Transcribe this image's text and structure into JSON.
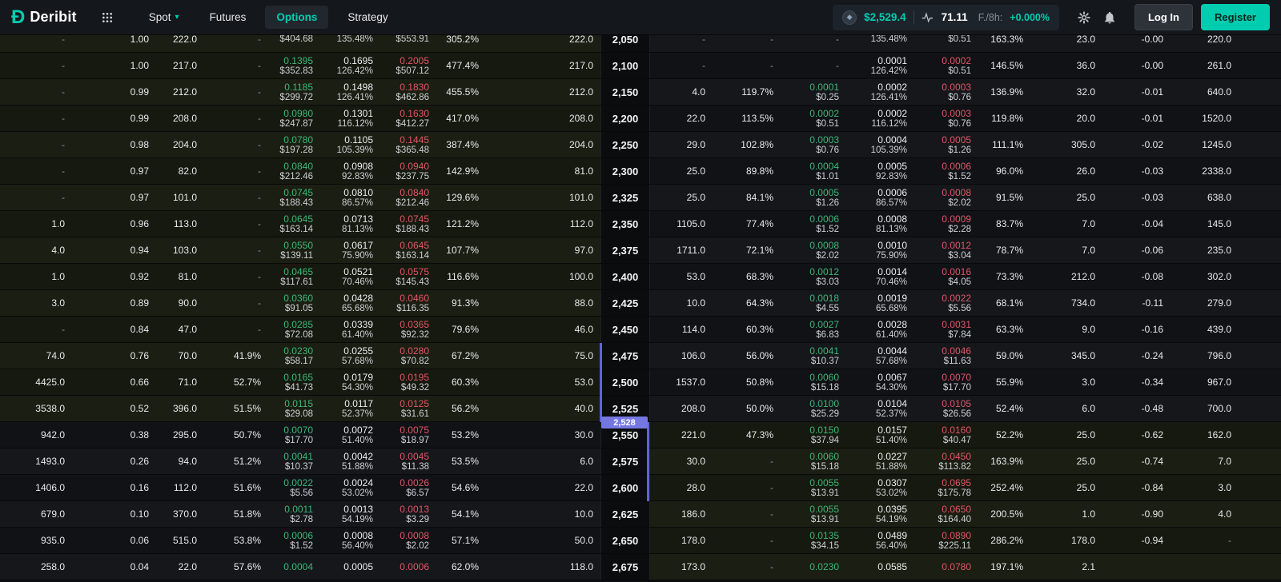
{
  "colors": {
    "accent": "#00cdb0",
    "green": "#3cb878",
    "red": "#e15767",
    "indigo": "#6063d8",
    "badge": "#7577e0"
  },
  "navbar": {
    "brand": "Deribit",
    "menu": [
      {
        "label": "Spot"
      },
      {
        "label": "Futures"
      },
      {
        "label": "Options"
      },
      {
        "label": "Strategy"
      }
    ],
    "ticker": {
      "price": "$2,529.4",
      "volatility": "71.11",
      "funding_label": "F./8h:",
      "funding_value": "+0.000%"
    },
    "login_label": "Log In",
    "register_label": "Register"
  },
  "chain": {
    "current_price_label": "2,528",
    "current_price_value": 2528,
    "rows": [
      {
        "strike": "2,050",
        "call": {
          "open": "-",
          "delta": "1.00",
          "size": "222.0",
          "iv_bid": "-",
          "bid": "",
          "bid_usd": "$404.68",
          "mark": "",
          "mark_iv": "135.48%",
          "ask": "",
          "ask_usd": "$553.91",
          "iv_ask": "305.2%",
          "ask_size": "222.0"
        },
        "put": {
          "size": "-",
          "iv_bid": "-",
          "bid": "-",
          "bid_usd": "",
          "mark": "",
          "mark_iv": "135.48%",
          "ask": "",
          "ask_usd": "$0.51",
          "iv_ask": "163.3%",
          "ask_size": "23.0",
          "delta": "-0.00",
          "open": "220.0"
        }
      },
      {
        "strike": "2,100",
        "call": {
          "open": "-",
          "delta": "1.00",
          "size": "217.0",
          "iv_bid": "-",
          "bid": "0.1395",
          "bid_usd": "$352.83",
          "mark": "0.1695",
          "mark_iv": "126.42%",
          "ask": "0.2005",
          "ask_usd": "$507.12",
          "iv_ask": "477.4%",
          "ask_size": "217.0"
        },
        "put": {
          "size": "-",
          "iv_bid": "-",
          "bid": "-",
          "bid_usd": "",
          "mark": "0.0001",
          "mark_iv": "126.42%",
          "ask": "0.0002",
          "ask_usd": "$0.51",
          "iv_ask": "146.5%",
          "ask_size": "36.0",
          "delta": "-0.00",
          "open": "261.0"
        }
      },
      {
        "strike": "2,150",
        "call": {
          "open": "-",
          "delta": "0.99",
          "size": "212.0",
          "iv_bid": "-",
          "bid": "0.1185",
          "bid_usd": "$299.72",
          "mark": "0.1498",
          "mark_iv": "126.41%",
          "ask": "0.1830",
          "ask_usd": "$462.86",
          "iv_ask": "455.5%",
          "ask_size": "212.0"
        },
        "put": {
          "size": "4.0",
          "iv_bid": "119.7%",
          "bid": "0.0001",
          "bid_usd": "$0.25",
          "mark": "0.0002",
          "mark_iv": "126.41%",
          "ask": "0.0003",
          "ask_usd": "$0.76",
          "iv_ask": "136.9%",
          "ask_size": "32.0",
          "delta": "-0.01",
          "open": "640.0"
        }
      },
      {
        "strike": "2,200",
        "call": {
          "open": "-",
          "delta": "0.99",
          "size": "208.0",
          "iv_bid": "-",
          "bid": "0.0980",
          "bid_usd": "$247.87",
          "mark": "0.1301",
          "mark_iv": "116.12%",
          "ask": "0.1630",
          "ask_usd": "$412.27",
          "iv_ask": "417.0%",
          "ask_size": "208.0"
        },
        "put": {
          "size": "22.0",
          "iv_bid": "113.5%",
          "bid": "0.0002",
          "bid_usd": "$0.51",
          "mark": "0.0002",
          "mark_iv": "116.12%",
          "ask": "0.0003",
          "ask_usd": "$0.76",
          "iv_ask": "119.8%",
          "ask_size": "20.0",
          "delta": "-0.01",
          "open": "1520.0"
        }
      },
      {
        "strike": "2,250",
        "call": {
          "open": "-",
          "delta": "0.98",
          "size": "204.0",
          "iv_bid": "-",
          "bid": "0.0780",
          "bid_usd": "$197.28",
          "mark": "0.1105",
          "mark_iv": "105.39%",
          "ask": "0.1445",
          "ask_usd": "$365.48",
          "iv_ask": "387.4%",
          "ask_size": "204.0"
        },
        "put": {
          "size": "29.0",
          "iv_bid": "102.8%",
          "bid": "0.0003",
          "bid_usd": "$0.76",
          "mark": "0.0004",
          "mark_iv": "105.39%",
          "ask": "0.0005",
          "ask_usd": "$1.26",
          "iv_ask": "111.1%",
          "ask_size": "305.0",
          "delta": "-0.02",
          "open": "1245.0"
        }
      },
      {
        "strike": "2,300",
        "call": {
          "open": "-",
          "delta": "0.97",
          "size": "82.0",
          "iv_bid": "-",
          "bid": "0.0840",
          "bid_usd": "$212.46",
          "mark": "0.0908",
          "mark_iv": "92.83%",
          "ask": "0.0940",
          "ask_usd": "$237.75",
          "iv_ask": "142.9%",
          "ask_size": "81.0"
        },
        "put": {
          "size": "25.0",
          "iv_bid": "89.8%",
          "bid": "0.0004",
          "bid_usd": "$1.01",
          "mark": "0.0005",
          "mark_iv": "92.83%",
          "ask": "0.0006",
          "ask_usd": "$1.52",
          "iv_ask": "96.0%",
          "ask_size": "26.0",
          "delta": "-0.03",
          "open": "2338.0"
        }
      },
      {
        "strike": "2,325",
        "call": {
          "open": "-",
          "delta": "0.97",
          "size": "101.0",
          "iv_bid": "-",
          "bid": "0.0745",
          "bid_usd": "$188.43",
          "mark": "0.0810",
          "mark_iv": "86.57%",
          "ask": "0.0840",
          "ask_usd": "$212.46",
          "iv_ask": "129.6%",
          "ask_size": "101.0"
        },
        "put": {
          "size": "25.0",
          "iv_bid": "84.1%",
          "bid": "0.0005",
          "bid_usd": "$1.26",
          "mark": "0.0006",
          "mark_iv": "86.57%",
          "ask": "0.0008",
          "ask_usd": "$2.02",
          "iv_ask": "91.5%",
          "ask_size": "25.0",
          "delta": "-0.03",
          "open": "638.0"
        }
      },
      {
        "strike": "2,350",
        "call": {
          "open": "1.0",
          "delta": "0.96",
          "size": "113.0",
          "iv_bid": "-",
          "bid": "0.0645",
          "bid_usd": "$163.14",
          "mark": "0.0713",
          "mark_iv": "81.13%",
          "ask": "0.0745",
          "ask_usd": "$188.43",
          "iv_ask": "121.2%",
          "ask_size": "112.0"
        },
        "put": {
          "size": "1105.0",
          "iv_bid": "77.4%",
          "bid": "0.0006",
          "bid_usd": "$1.52",
          "mark": "0.0008",
          "mark_iv": "81.13%",
          "ask": "0.0009",
          "ask_usd": "$2.28",
          "iv_ask": "83.7%",
          "ask_size": "7.0",
          "delta": "-0.04",
          "open": "145.0"
        }
      },
      {
        "strike": "2,375",
        "call": {
          "open": "4.0",
          "delta": "0.94",
          "size": "103.0",
          "iv_bid": "-",
          "bid": "0.0550",
          "bid_usd": "$139.11",
          "mark": "0.0617",
          "mark_iv": "75.90%",
          "ask": "0.0645",
          "ask_usd": "$163.14",
          "iv_ask": "107.7%",
          "ask_size": "97.0"
        },
        "put": {
          "size": "1711.0",
          "iv_bid": "72.1%",
          "bid": "0.0008",
          "bid_usd": "$2.02",
          "mark": "0.0010",
          "mark_iv": "75.90%",
          "ask": "0.0012",
          "ask_usd": "$3.04",
          "iv_ask": "78.7%",
          "ask_size": "7.0",
          "delta": "-0.06",
          "open": "235.0"
        }
      },
      {
        "strike": "2,400",
        "call": {
          "open": "1.0",
          "delta": "0.92",
          "size": "81.0",
          "iv_bid": "-",
          "bid": "0.0465",
          "bid_usd": "$117.61",
          "mark": "0.0521",
          "mark_iv": "70.46%",
          "ask": "0.0575",
          "ask_usd": "$145.43",
          "iv_ask": "116.6%",
          "ask_size": "100.0"
        },
        "put": {
          "size": "53.0",
          "iv_bid": "68.3%",
          "bid": "0.0012",
          "bid_usd": "$3.03",
          "mark": "0.0014",
          "mark_iv": "70.46%",
          "ask": "0.0016",
          "ask_usd": "$4.05",
          "iv_ask": "73.3%",
          "ask_size": "212.0",
          "delta": "-0.08",
          "open": "302.0"
        }
      },
      {
        "strike": "2,425",
        "call": {
          "open": "3.0",
          "delta": "0.89",
          "size": "90.0",
          "iv_bid": "-",
          "bid": "0.0360",
          "bid_usd": "$91.05",
          "mark": "0.0428",
          "mark_iv": "65.68%",
          "ask": "0.0460",
          "ask_usd": "$116.35",
          "iv_ask": "91.3%",
          "ask_size": "88.0"
        },
        "put": {
          "size": "10.0",
          "iv_bid": "64.3%",
          "bid": "0.0018",
          "bid_usd": "$4.55",
          "mark": "0.0019",
          "mark_iv": "65.68%",
          "ask": "0.0022",
          "ask_usd": "$5.56",
          "iv_ask": "68.1%",
          "ask_size": "734.0",
          "delta": "-0.11",
          "open": "279.0"
        }
      },
      {
        "strike": "2,450",
        "call": {
          "open": "-",
          "delta": "0.84",
          "size": "47.0",
          "iv_bid": "-",
          "bid": "0.0285",
          "bid_usd": "$72.08",
          "mark": "0.0339",
          "mark_iv": "61.40%",
          "ask": "0.0365",
          "ask_usd": "$92.32",
          "iv_ask": "79.6%",
          "ask_size": "46.0"
        },
        "put": {
          "size": "114.0",
          "iv_bid": "60.3%",
          "bid": "0.0027",
          "bid_usd": "$6.83",
          "mark": "0.0028",
          "mark_iv": "61.40%",
          "ask": "0.0031",
          "ask_usd": "$7.84",
          "iv_ask": "63.3%",
          "ask_size": "9.0",
          "delta": "-0.16",
          "open": "439.0"
        }
      },
      {
        "strike": "2,475",
        "call": {
          "open": "74.0",
          "delta": "0.76",
          "size": "70.0",
          "iv_bid": "41.9%",
          "bid": "0.0230",
          "bid_usd": "$58.17",
          "mark": "0.0255",
          "mark_iv": "57.68%",
          "ask": "0.0280",
          "ask_usd": "$70.82",
          "iv_ask": "67.2%",
          "ask_size": "75.0"
        },
        "put": {
          "size": "106.0",
          "iv_bid": "56.0%",
          "bid": "0.0041",
          "bid_usd": "$10.37",
          "mark": "0.0044",
          "mark_iv": "57.68%",
          "ask": "0.0046",
          "ask_usd": "$11.63",
          "iv_ask": "59.0%",
          "ask_size": "345.0",
          "delta": "-0.24",
          "open": "796.0"
        }
      },
      {
        "strike": "2,500",
        "call": {
          "open": "4425.0",
          "delta": "0.66",
          "size": "71.0",
          "iv_bid": "52.7%",
          "bid": "0.0165",
          "bid_usd": "$41.73",
          "mark": "0.0179",
          "mark_iv": "54.30%",
          "ask": "0.0195",
          "ask_usd": "$49.32",
          "iv_ask": "60.3%",
          "ask_size": "53.0"
        },
        "put": {
          "size": "1537.0",
          "iv_bid": "50.8%",
          "bid": "0.0060",
          "bid_usd": "$15.18",
          "mark": "0.0067",
          "mark_iv": "54.30%",
          "ask": "0.0070",
          "ask_usd": "$17.70",
          "iv_ask": "55.9%",
          "ask_size": "3.0",
          "delta": "-0.34",
          "open": "967.0"
        }
      },
      {
        "strike": "2,525",
        "call": {
          "open": "3538.0",
          "delta": "0.52",
          "size": "396.0",
          "iv_bid": "51.5%",
          "bid": "0.0115",
          "bid_usd": "$29.08",
          "mark": "0.0117",
          "mark_iv": "52.37%",
          "ask": "0.0125",
          "ask_usd": "$31.61",
          "iv_ask": "56.2%",
          "ask_size": "40.0"
        },
        "put": {
          "size": "208.0",
          "iv_bid": "50.0%",
          "bid": "0.0100",
          "bid_usd": "$25.29",
          "mark": "0.0104",
          "mark_iv": "52.37%",
          "ask": "0.0105",
          "ask_usd": "$26.56",
          "iv_ask": "52.4%",
          "ask_size": "6.0",
          "delta": "-0.48",
          "open": "700.0"
        }
      },
      {
        "strike": "2,550",
        "call": {
          "open": "942.0",
          "delta": "0.38",
          "size": "295.0",
          "iv_bid": "50.7%",
          "bid": "0.0070",
          "bid_usd": "$17.70",
          "mark": "0.0072",
          "mark_iv": "51.40%",
          "ask": "0.0075",
          "ask_usd": "$18.97",
          "iv_ask": "53.2%",
          "ask_size": "30.0"
        },
        "put": {
          "size": "221.0",
          "iv_bid": "47.3%",
          "bid": "0.0150",
          "bid_usd": "$37.94",
          "mark": "0.0157",
          "mark_iv": "51.40%",
          "ask": "0.0160",
          "ask_usd": "$40.47",
          "iv_ask": "52.2%",
          "ask_size": "25.0",
          "delta": "-0.62",
          "open": "162.0"
        }
      },
      {
        "strike": "2,575",
        "call": {
          "open": "1493.0",
          "delta": "0.26",
          "size": "94.0",
          "iv_bid": "51.2%",
          "bid": "0.0041",
          "bid_usd": "$10.37",
          "mark": "0.0042",
          "mark_iv": "51.88%",
          "ask": "0.0045",
          "ask_usd": "$11.38",
          "iv_ask": "53.5%",
          "ask_size": "6.0"
        },
        "put": {
          "size": "30.0",
          "iv_bid": "-",
          "bid": "0.0060",
          "bid_usd": "$15.18",
          "mark": "0.0227",
          "mark_iv": "51.88%",
          "ask": "0.0450",
          "ask_usd": "$113.82",
          "iv_ask": "163.9%",
          "ask_size": "25.0",
          "delta": "-0.74",
          "open": "7.0"
        }
      },
      {
        "strike": "2,600",
        "call": {
          "open": "1406.0",
          "delta": "0.16",
          "size": "112.0",
          "iv_bid": "51.6%",
          "bid": "0.0022",
          "bid_usd": "$5.56",
          "mark": "0.0024",
          "mark_iv": "53.02%",
          "ask": "0.0026",
          "ask_usd": "$6.57",
          "iv_ask": "54.6%",
          "ask_size": "22.0"
        },
        "put": {
          "size": "28.0",
          "iv_bid": "-",
          "bid": "0.0055",
          "bid_usd": "$13.91",
          "mark": "0.0307",
          "mark_iv": "53.02%",
          "ask": "0.0695",
          "ask_usd": "$175.78",
          "iv_ask": "252.4%",
          "ask_size": "25.0",
          "delta": "-0.84",
          "open": "3.0"
        }
      },
      {
        "strike": "2,625",
        "call": {
          "open": "679.0",
          "delta": "0.10",
          "size": "370.0",
          "iv_bid": "51.8%",
          "bid": "0.0011",
          "bid_usd": "$2.78",
          "mark": "0.0013",
          "mark_iv": "54.19%",
          "ask": "0.0013",
          "ask_usd": "$3.29",
          "iv_ask": "54.1%",
          "ask_size": "10.0"
        },
        "put": {
          "size": "186.0",
          "iv_bid": "-",
          "bid": "0.0055",
          "bid_usd": "$13.91",
          "mark": "0.0395",
          "mark_iv": "54.19%",
          "ask": "0.0650",
          "ask_usd": "$164.40",
          "iv_ask": "200.5%",
          "ask_size": "1.0",
          "delta": "-0.90",
          "open": "4.0"
        }
      },
      {
        "strike": "2,650",
        "call": {
          "open": "935.0",
          "delta": "0.06",
          "size": "515.0",
          "iv_bid": "53.8%",
          "bid": "0.0006",
          "bid_usd": "$1.52",
          "mark": "0.0008",
          "mark_iv": "56.40%",
          "ask": "0.0008",
          "ask_usd": "$2.02",
          "iv_ask": "57.1%",
          "ask_size": "50.0"
        },
        "put": {
          "size": "178.0",
          "iv_bid": "-",
          "bid": "0.0135",
          "bid_usd": "$34.15",
          "mark": "0.0489",
          "mark_iv": "56.40%",
          "ask": "0.0890",
          "ask_usd": "$225.11",
          "iv_ask": "286.2%",
          "ask_size": "178.0",
          "delta": "-0.94",
          "open": "-"
        }
      },
      {
        "strike": "2,675",
        "call": {
          "open": "258.0",
          "delta": "0.04",
          "size": "22.0",
          "iv_bid": "57.6%",
          "bid": "0.0004",
          "bid_usd": "",
          "mark": "0.0005",
          "mark_iv": "",
          "ask": "0.0006",
          "ask_usd": "",
          "iv_ask": "62.0%",
          "ask_size": "118.0"
        },
        "put": {
          "size": "173.0",
          "iv_bid": "-",
          "bid": "0.0230",
          "bid_usd": "",
          "mark": "0.0585",
          "mark_iv": "",
          "ask": "0.0780",
          "ask_usd": "",
          "iv_ask": "197.1%",
          "ask_size": "2.1",
          "delta": "",
          "open": ""
        }
      }
    ]
  }
}
